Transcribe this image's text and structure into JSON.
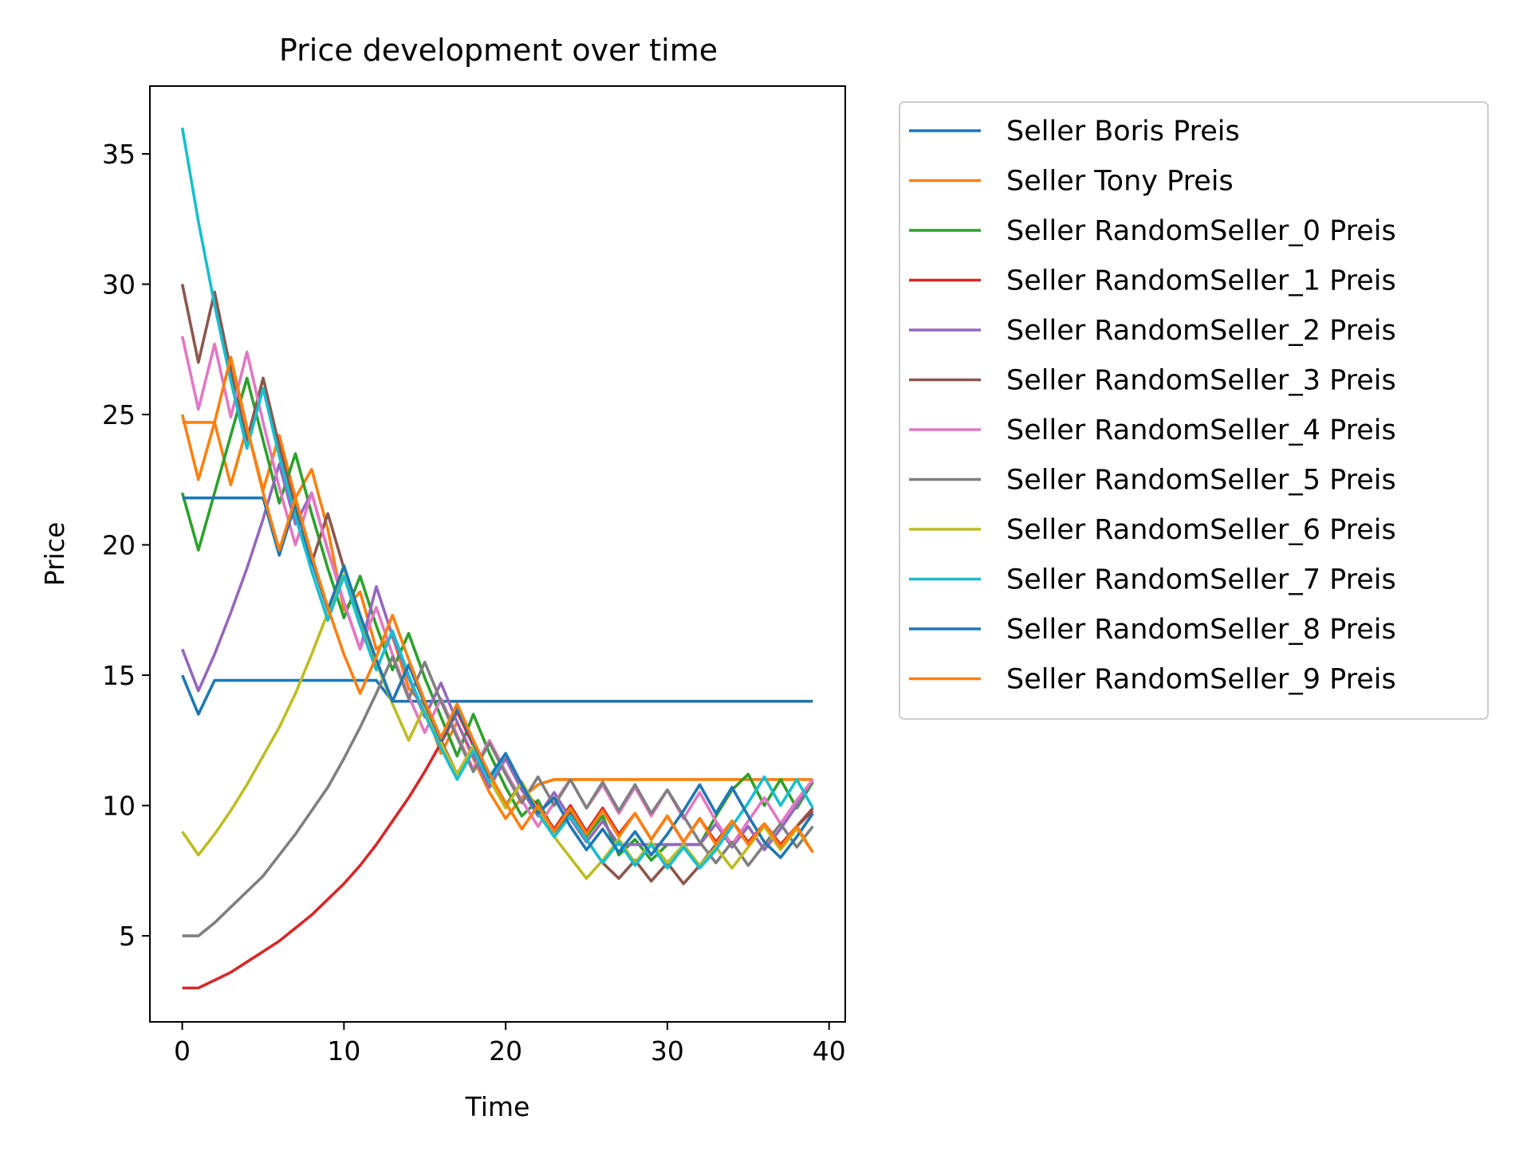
{
  "chart_data": {
    "type": "line",
    "title": "Price development over time",
    "xlabel": "Time",
    "ylabel": "Price",
    "xlim": [
      -2,
      41
    ],
    "ylim": [
      1.7,
      37.6
    ],
    "xticks": [
      0,
      10,
      20,
      30,
      40
    ],
    "yticks": [
      5,
      10,
      15,
      20,
      25,
      30,
      35
    ],
    "grid": false,
    "legend_position": "outside-right",
    "x": [
      0,
      1,
      2,
      3,
      4,
      5,
      6,
      7,
      8,
      9,
      10,
      11,
      12,
      13,
      14,
      15,
      16,
      17,
      18,
      19,
      20,
      21,
      22,
      23,
      24,
      25,
      26,
      27,
      28,
      29,
      30,
      31,
      32,
      33,
      34,
      35,
      36,
      37,
      38,
      39
    ],
    "series": [
      {
        "name": "Seller Boris Preis",
        "color": "#1f77b4",
        "values": [
          15.0,
          13.5,
          14.8,
          14.8,
          14.8,
          14.8,
          14.8,
          14.8,
          14.8,
          14.8,
          14.8,
          14.8,
          14.8,
          14.0,
          14.0,
          14.0,
          14.0,
          14.0,
          14.0,
          14.0,
          14.0,
          14.0,
          14.0,
          14.0,
          14.0,
          14.0,
          14.0,
          14.0,
          14.0,
          14.0,
          14.0,
          14.0,
          14.0,
          14.0,
          14.0,
          14.0,
          14.0,
          14.0,
          14.0,
          14.0
        ]
      },
      {
        "name": "Seller Tony Preis",
        "color": "#ff7f0e",
        "values": [
          25.0,
          22.5,
          24.7,
          22.3,
          24.5,
          22.1,
          24.2,
          21.8,
          22.9,
          20.6,
          17.5,
          18.2,
          16.0,
          16.5,
          14.5,
          13.8,
          12.0,
          13.2,
          11.8,
          10.5,
          9.5,
          10.3,
          10.8,
          11.0,
          11.0,
          11.0,
          11.0,
          11.0,
          11.0,
          11.0,
          11.0,
          11.0,
          11.0,
          11.0,
          11.0,
          11.0,
          11.0,
          11.0,
          11.0,
          11.0
        ]
      },
      {
        "name": "Seller RandomSeller_0 Preis",
        "color": "#2ca02c",
        "values": [
          22.0,
          19.8,
          22.0,
          24.2,
          26.4,
          24.0,
          21.6,
          23.5,
          21.2,
          19.1,
          17.2,
          18.8,
          16.9,
          15.2,
          16.6,
          14.9,
          13.4,
          11.9,
          13.5,
          12.0,
          10.7,
          9.6,
          10.2,
          9.0,
          9.8,
          8.8,
          9.6,
          8.1,
          8.7,
          7.9,
          8.5,
          8.5,
          8.5,
          9.6,
          10.6,
          11.2,
          10.0,
          11.0,
          9.9,
          10.9
        ]
      },
      {
        "name": "Seller RandomSeller_1 Preis",
        "color": "#d62728",
        "values": [
          3.0,
          3.0,
          3.3,
          3.6,
          4.0,
          4.4,
          4.8,
          5.3,
          5.8,
          6.4,
          7.0,
          7.7,
          8.5,
          9.4,
          10.3,
          11.3,
          12.4,
          13.6,
          12.3,
          11.0,
          11.8,
          10.6,
          10.0,
          9.1,
          10.0,
          9.0,
          9.9,
          8.9,
          9.7,
          8.7,
          9.6,
          8.6,
          9.5,
          8.6,
          9.4,
          8.6,
          9.3,
          8.5,
          9.2,
          9.8
        ]
      },
      {
        "name": "Seller RandomSeller_2 Preis",
        "color": "#9467bd",
        "values": [
          16.0,
          14.4,
          15.8,
          17.4,
          19.1,
          21.0,
          23.1,
          20.8,
          22.0,
          19.8,
          17.8,
          16.0,
          18.4,
          16.5,
          14.9,
          13.4,
          14.7,
          13.2,
          11.9,
          10.7,
          11.8,
          10.6,
          9.6,
          10.5,
          9.5,
          8.6,
          9.4,
          8.5,
          8.5,
          8.5,
          8.5,
          8.5,
          8.5,
          9.3,
          8.4,
          9.2,
          8.3,
          9.1,
          10.0,
          11.0
        ]
      },
      {
        "name": "Seller RandomSeller_3 Preis",
        "color": "#8c564b",
        "values": [
          30.0,
          27.0,
          29.7,
          26.7,
          24.0,
          26.4,
          23.8,
          21.4,
          19.3,
          21.2,
          19.1,
          17.2,
          15.5,
          14.0,
          15.4,
          13.9,
          12.5,
          11.2,
          12.3,
          11.1,
          10.0,
          10.9,
          9.8,
          8.8,
          9.7,
          8.7,
          7.8,
          7.2,
          7.9,
          7.1,
          7.8,
          7.0,
          7.7,
          8.5,
          9.4,
          8.5,
          9.3,
          8.4,
          9.2,
          9.9
        ]
      },
      {
        "name": "Seller RandomSeller_4 Preis",
        "color": "#e377c2",
        "values": [
          28.0,
          25.2,
          27.7,
          24.9,
          27.4,
          24.7,
          22.2,
          20.0,
          22.0,
          19.8,
          17.8,
          16.0,
          17.6,
          15.8,
          14.2,
          12.8,
          14.1,
          12.7,
          11.4,
          12.5,
          11.3,
          10.2,
          9.2,
          10.1,
          11.0,
          9.9,
          10.8,
          9.7,
          10.7,
          9.6,
          10.6,
          9.5,
          10.5,
          9.4,
          8.5,
          9.4,
          10.3,
          9.3,
          10.2,
          11.0
        ]
      },
      {
        "name": "Seller RandomSeller_5 Preis",
        "color": "#7f7f7f",
        "values": [
          5.0,
          5.0,
          5.5,
          6.1,
          6.7,
          7.3,
          8.1,
          8.9,
          9.8,
          10.7,
          11.8,
          13.0,
          14.3,
          15.7,
          14.1,
          15.5,
          14.0,
          12.6,
          11.3,
          12.4,
          11.2,
          10.1,
          11.1,
          10.0,
          11.0,
          9.9,
          10.9,
          9.8,
          10.8,
          9.7,
          10.6,
          9.6,
          8.6,
          7.8,
          8.6,
          7.7,
          8.5,
          9.3,
          8.4,
          9.2
        ]
      },
      {
        "name": "Seller RandomSeller_6 Preis",
        "color": "#bcbd22",
        "values": [
          9.0,
          8.1,
          8.9,
          9.8,
          10.8,
          11.9,
          13.0,
          14.3,
          15.8,
          17.4,
          19.1,
          17.2,
          15.5,
          13.9,
          12.5,
          13.8,
          12.4,
          11.2,
          12.3,
          11.0,
          9.9,
          10.9,
          9.8,
          8.8,
          8.0,
          7.2,
          7.9,
          8.7,
          7.8,
          8.6,
          7.8,
          8.5,
          7.7,
          8.4,
          7.6,
          8.4,
          9.2,
          8.3,
          9.1,
          8.2
        ]
      },
      {
        "name": "Seller RandomSeller_7 Preis",
        "color": "#17becf",
        "values": [
          36.0,
          32.4,
          29.2,
          26.3,
          23.7,
          26.0,
          23.4,
          21.1,
          19.0,
          17.1,
          18.8,
          16.9,
          15.2,
          16.7,
          15.0,
          13.5,
          12.2,
          11.0,
          12.1,
          10.9,
          12.0,
          10.8,
          9.7,
          8.8,
          9.6,
          8.7,
          7.8,
          8.6,
          7.7,
          8.5,
          7.6,
          8.4,
          7.6,
          8.3,
          9.2,
          10.1,
          11.1,
          10.0,
          11.0,
          9.9
        ]
      },
      {
        "name": "Seller RandomSeller_8 Preis",
        "color": "#1f77b4",
        "values": [
          21.8,
          21.8,
          21.8,
          21.8,
          21.8,
          21.8,
          19.6,
          21.6,
          19.4,
          17.5,
          19.2,
          17.3,
          15.6,
          14.0,
          15.4,
          13.9,
          12.5,
          13.7,
          12.4,
          11.1,
          12.0,
          10.8,
          9.7,
          10.3,
          9.2,
          8.3,
          9.1,
          8.2,
          9.0,
          8.1,
          8.9,
          9.8,
          10.8,
          9.7,
          10.7,
          9.6,
          8.6,
          8.0,
          8.8,
          9.7
        ]
      },
      {
        "name": "Seller RandomSeller_9 Preis",
        "color": "#ff7f0e",
        "values": [
          24.7,
          24.7,
          24.7,
          27.2,
          24.5,
          22.0,
          19.8,
          21.8,
          19.6,
          17.6,
          15.8,
          14.3,
          15.7,
          17.3,
          15.6,
          14.0,
          12.6,
          13.9,
          12.5,
          11.2,
          10.1,
          9.1,
          10.0,
          9.0,
          9.9,
          8.9,
          9.8,
          8.8,
          9.7,
          8.7,
          9.6,
          8.6,
          9.5,
          8.5,
          9.4,
          8.5,
          9.3,
          8.4,
          9.2,
          8.2
        ]
      }
    ]
  }
}
